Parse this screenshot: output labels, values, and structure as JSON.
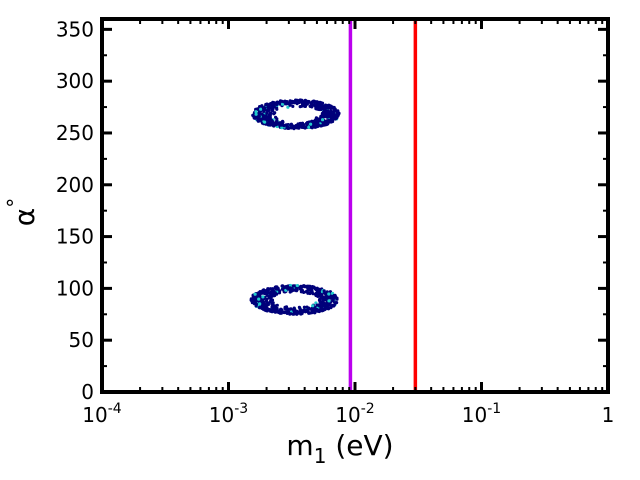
{
  "chart_data": {
    "type": "scatter",
    "title": "",
    "xlabel": {
      "base": "m",
      "sub": "1",
      "rest": " (eV)"
    },
    "ylabel": {
      "base": "α",
      "sup": "°"
    },
    "xscale": "log",
    "xlim": [
      0.0001,
      1
    ],
    "ylim": [
      0,
      360
    ],
    "xticks": [
      {
        "value": 0.0001,
        "base": "10",
        "exp": "-4"
      },
      {
        "value": 0.001,
        "base": "10",
        "exp": "-3"
      },
      {
        "value": 0.01,
        "base": "10",
        "exp": "-2"
      },
      {
        "value": 0.1,
        "base": "10",
        "exp": "-1"
      },
      {
        "value": 1,
        "base": "1",
        "exp": ""
      }
    ],
    "yticks": [
      "0",
      "50",
      "100",
      "150",
      "200",
      "250",
      "300",
      "350"
    ],
    "grid": false,
    "legend": "none",
    "vertical_lines": [
      {
        "x": 0.0092,
        "color": "#bb00ee"
      },
      {
        "x": 0.03,
        "color": "#ff0000"
      }
    ],
    "series": [
      {
        "color": "#00007a",
        "secondary_color": "#22cccc",
        "clusters": [
          {
            "x_min": 0.00155,
            "x_max": 0.0075,
            "center_x": 0.0035,
            "y_center": 268,
            "y_half_height": 14
          },
          {
            "x_min": 0.0015,
            "x_max": 0.0073,
            "center_x": 0.0034,
            "y_center": 89,
            "y_half_height": 14
          }
        ]
      }
    ]
  }
}
